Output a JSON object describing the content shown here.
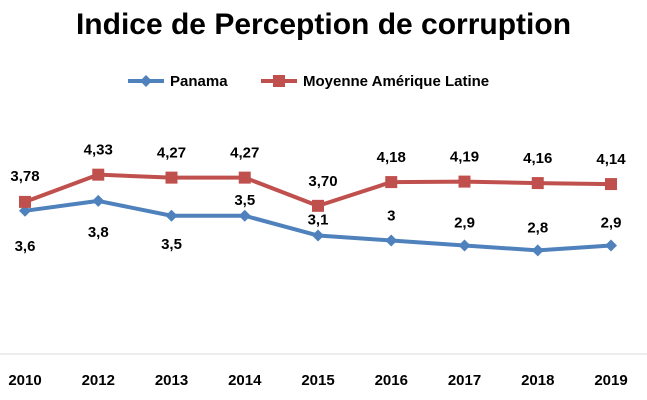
{
  "chart_data": {
    "type": "line",
    "title": "Indice de Perception de corruption",
    "categories": [
      "2010",
      "2012",
      "2013",
      "2014",
      "2015",
      "2016",
      "2017",
      "2018",
      "2019"
    ],
    "series": [
      {
        "name": "Panama",
        "values": [
          3.6,
          3.8,
          3.5,
          3.5,
          3.1,
          3.0,
          2.9,
          2.8,
          2.9
        ],
        "labels": [
          "3,6",
          "3,8",
          "3,5",
          "3,5",
          "3,1",
          "3",
          "2,9",
          "2,8",
          "2,9"
        ],
        "color": "#4F81BD",
        "marker": "diamond"
      },
      {
        "name": "Moyenne Amérique Latine",
        "values": [
          3.78,
          4.33,
          4.27,
          4.27,
          3.7,
          4.18,
          4.19,
          4.16,
          4.14
        ],
        "labels": [
          "3,78",
          "4,33",
          "4,27",
          "4,27",
          "3,70",
          "4,18",
          "4,19",
          "4,16",
          "4,14"
        ],
        "color": "#C0504D",
        "marker": "square"
      }
    ],
    "legend_position": "top",
    "grid": false,
    "axis_line_color": "#D9D9D9"
  }
}
